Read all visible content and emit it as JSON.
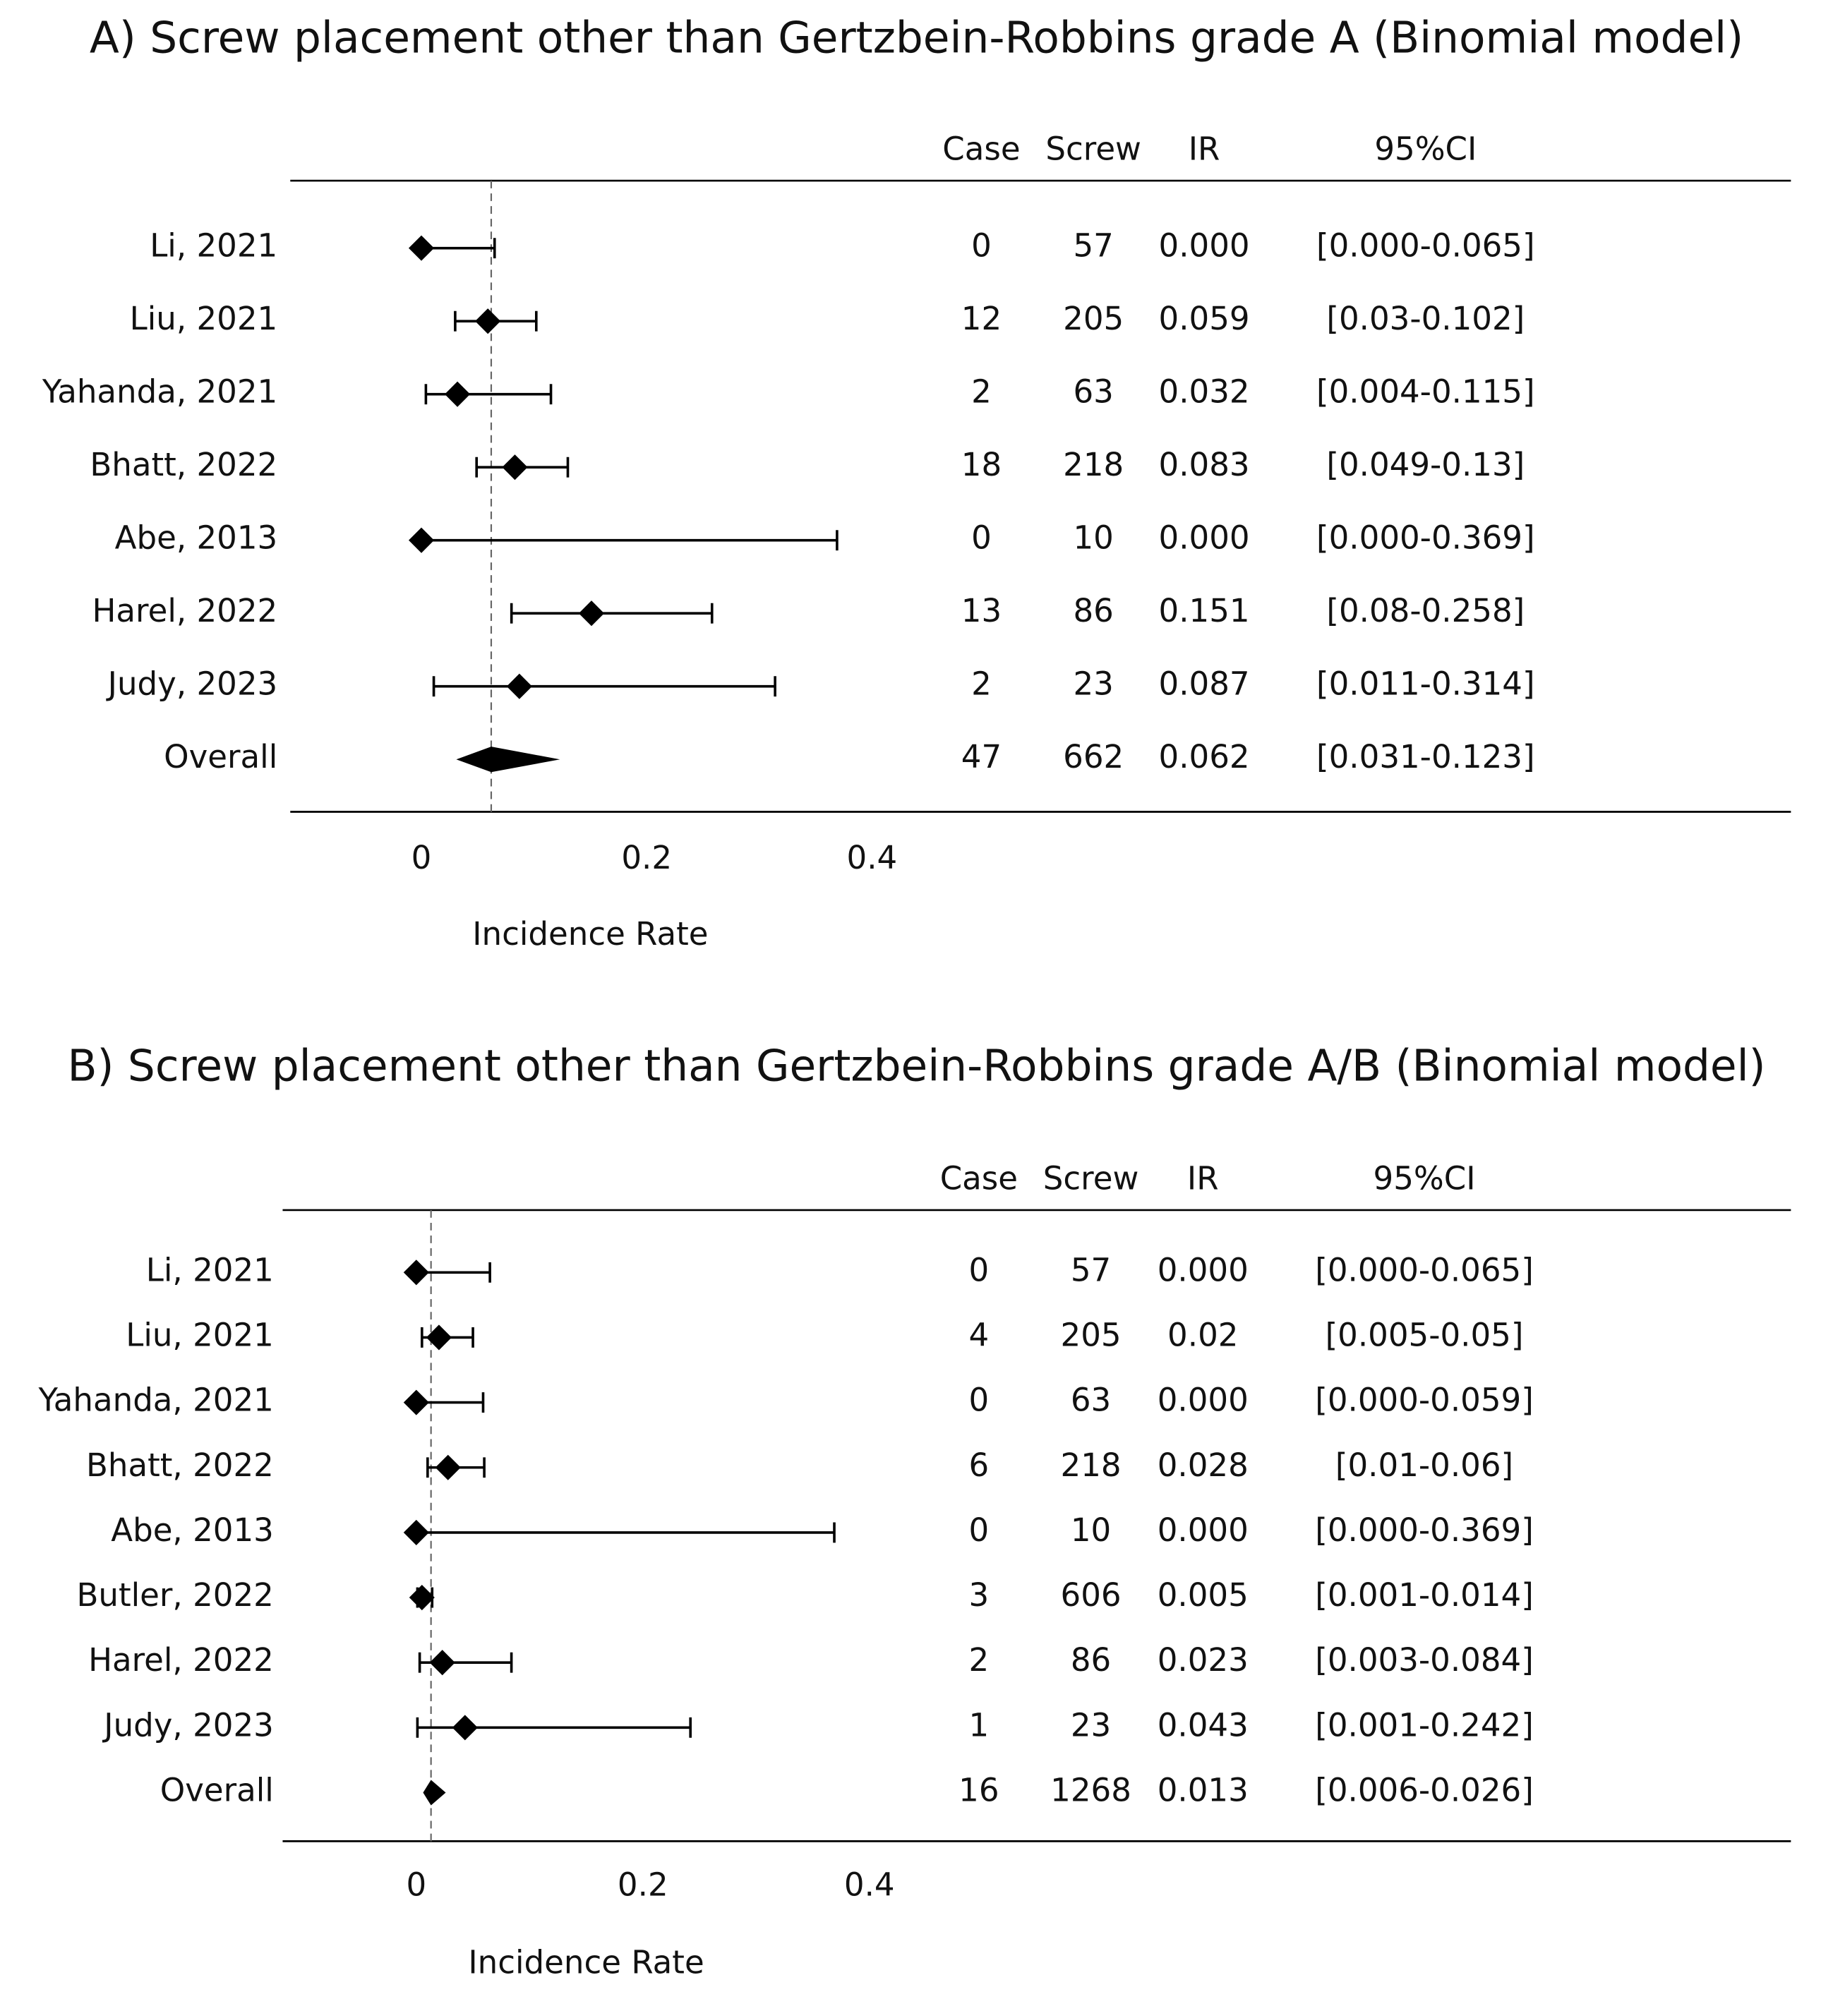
{
  "chart_data": [
    {
      "type": "forest",
      "title": "A) Screw placement other than Gertzbein-Robbins grade A (Binomial model)",
      "column_headers": [
        "Case",
        "Screw",
        "IR",
        "95%CI"
      ],
      "categories": [
        "Li, 2021",
        "Liu, 2021",
        "Yahanda, 2021",
        "Bhatt, 2022",
        "Abe, 2013",
        "Harel, 2022",
        "Judy, 2023",
        "Overall"
      ],
      "case": [
        0,
        12,
        2,
        18,
        0,
        13,
        2,
        47
      ],
      "screw": [
        57,
        205,
        63,
        218,
        10,
        86,
        23,
        662
      ],
      "values": [
        0,
        0.059,
        0.032,
        0.083,
        0,
        0.151,
        0.087,
        0.062
      ],
      "value_labels": [
        "0.000",
        "0.059",
        "0.032",
        "0.083",
        "0.000",
        "0.151",
        "0.087",
        "0.062"
      ],
      "ci_lower": [
        0,
        0.03,
        0.004,
        0.049,
        0,
        0.08,
        0.011,
        0.031
      ],
      "ci_upper": [
        0.065,
        0.102,
        0.115,
        0.13,
        0.369,
        0.258,
        0.314,
        0.123
      ],
      "ci_labels": [
        "[0.000-0.065]",
        "[0.03-0.102]",
        "[0.004-0.115]",
        "[0.049-0.13]",
        "[0.000-0.369]",
        "[0.08-0.258]",
        "[0.011-0.314]",
        "[0.031-0.123]"
      ],
      "xlabel": "Incidence Rate",
      "xlim": [
        -0.12,
        0.42
      ],
      "xticks": [
        0,
        0.2,
        0.4
      ],
      "color": "#000000"
    },
    {
      "type": "forest",
      "title": "B) Screw placement other than Gertzbein-Robbins grade A/B (Binomial model)",
      "column_headers": [
        "Case",
        "Screw",
        "IR",
        "95%CI"
      ],
      "categories": [
        "Li, 2021",
        "Liu, 2021",
        "Yahanda, 2021",
        "Bhatt, 2022",
        "Abe, 2013",
        "Butler, 2022",
        "Harel, 2022",
        "Judy, 2023",
        "Overall"
      ],
      "case": [
        0,
        4,
        0,
        6,
        0,
        3,
        2,
        1,
        16
      ],
      "screw": [
        57,
        205,
        63,
        218,
        10,
        606,
        86,
        23,
        1268
      ],
      "values": [
        0,
        0.02,
        0,
        0.028,
        0,
        0.005,
        0.023,
        0.043,
        0.013
      ],
      "value_labels": [
        "0.000",
        "0.02",
        "0.000",
        "0.028",
        "0.000",
        "0.005",
        "0.023",
        "0.043",
        "0.013"
      ],
      "ci_lower": [
        0,
        0.005,
        0,
        0.01,
        0,
        0.001,
        0.003,
        0.001,
        0.006
      ],
      "ci_upper": [
        0.065,
        0.05,
        0.059,
        0.06,
        0.369,
        0.014,
        0.084,
        0.242,
        0.026
      ],
      "ci_labels": [
        "[0.000-0.065]",
        "[0.005-0.05]",
        "[0.000-0.059]",
        "[0.01-0.06]",
        "[0.000-0.369]",
        "[0.001-0.014]",
        "[0.003-0.084]",
        "[0.001-0.242]",
        "[0.006-0.026]"
      ],
      "xlabel": "Incidence Rate",
      "xlim": [
        -0.12,
        0.42
      ],
      "xticks": [
        0,
        0.2,
        0.4
      ],
      "color": "#000000"
    }
  ]
}
